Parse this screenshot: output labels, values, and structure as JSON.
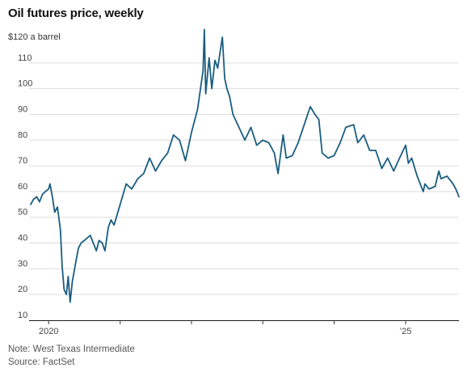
{
  "header": {
    "title": "Oil futures price, weekly",
    "unit_label": "$120 a barrel"
  },
  "footer": {
    "note": "Note: West Texas Intermediate",
    "source": "Source: FactSet"
  },
  "colors": {
    "line": "#1a5d80",
    "grid": "#dddddd",
    "axis": "#222222"
  },
  "chart_data": {
    "type": "line",
    "title": "Oil futures price, weekly",
    "xlabel": "",
    "ylabel": "$120 a barrel",
    "ylim": [
      10,
      120
    ],
    "xlim": [
      "2019-10-01",
      "2025-10-01"
    ],
    "grid": true,
    "y_ticks": [
      10,
      20,
      30,
      40,
      50,
      60,
      70,
      80,
      90,
      100,
      110
    ],
    "x_tick_labels": [
      {
        "date": "2020-01-01",
        "label": "2020"
      },
      {
        "date": "2025-01-01",
        "label": "’25"
      }
    ],
    "x_minor_ticks": [
      "2021-01-01",
      "2022-01-01",
      "2023-01-01",
      "2024-01-01"
    ],
    "series": [
      {
        "x": [
          "2019-10-01",
          "2019-10-15",
          "2019-11-01",
          "2019-11-15",
          "2019-12-01",
          "2019-12-15",
          "2020-01-01",
          "2020-01-08",
          "2020-01-20",
          "2020-02-01",
          "2020-02-15",
          "2020-03-01",
          "2020-03-10",
          "2020-03-20",
          "2020-04-01",
          "2020-04-10",
          "2020-04-20",
          "2020-05-01",
          "2020-05-15",
          "2020-06-01",
          "2020-06-15",
          "2020-07-01",
          "2020-08-01",
          "2020-09-01",
          "2020-09-15",
          "2020-10-01",
          "2020-10-15",
          "2020-11-01",
          "2020-11-15",
          "2020-12-01",
          "2021-01-01",
          "2021-02-01",
          "2021-03-01",
          "2021-04-01",
          "2021-05-01",
          "2021-06-01",
          "2021-07-01",
          "2021-08-01",
          "2021-09-01",
          "2021-10-01",
          "2021-11-01",
          "2021-12-01",
          "2022-01-01",
          "2022-02-01",
          "2022-03-01",
          "2022-03-08",
          "2022-03-15",
          "2022-04-01",
          "2022-04-15",
          "2022-05-01",
          "2022-05-15",
          "2022-06-08",
          "2022-06-20",
          "2022-07-01",
          "2022-07-15",
          "2022-08-01",
          "2022-09-01",
          "2022-10-01",
          "2022-11-01",
          "2022-12-01",
          "2023-01-01",
          "2023-02-01",
          "2023-03-01",
          "2023-03-20",
          "2023-04-15",
          "2023-05-01",
          "2023-06-01",
          "2023-07-01",
          "2023-08-01",
          "2023-09-01",
          "2023-09-25",
          "2023-10-15",
          "2023-11-01",
          "2023-12-01",
          "2024-01-01",
          "2024-02-01",
          "2024-03-01",
          "2024-04-10",
          "2024-05-01",
          "2024-06-01",
          "2024-07-01",
          "2024-08-01",
          "2024-09-01",
          "2024-10-01",
          "2024-11-01",
          "2024-12-01",
          "2025-01-01",
          "2025-01-15",
          "2025-02-01",
          "2025-03-01",
          "2025-04-01",
          "2025-04-10",
          "2025-05-01",
          "2025-06-01",
          "2025-06-20",
          "2025-07-01",
          "2025-08-01",
          "2025-09-01",
          "2025-09-15",
          "2025-10-01"
        ],
        "y": [
          55,
          57,
          58,
          56,
          59,
          60,
          61,
          63,
          58,
          52,
          54,
          45,
          31,
          22,
          20,
          27,
          17,
          25,
          31,
          38,
          40,
          41,
          43,
          37,
          41,
          40,
          37,
          46,
          49,
          47,
          55,
          63,
          61,
          65,
          67,
          73,
          68,
          72,
          75,
          82,
          80,
          72,
          83,
          92,
          107,
          123,
          98,
          112,
          100,
          111,
          108,
          120,
          104,
          100,
          97,
          90,
          85,
          80,
          85,
          78,
          80,
          79,
          75,
          67,
          82,
          73,
          74,
          79,
          86,
          93,
          90,
          88,
          75,
          73,
          74,
          79,
          85,
          86,
          79,
          82,
          76,
          76,
          69,
          73,
          68,
          73,
          78,
          71,
          73,
          66,
          60,
          63,
          61,
          62,
          68,
          65,
          66,
          63,
          61,
          58
        ]
      }
    ]
  }
}
